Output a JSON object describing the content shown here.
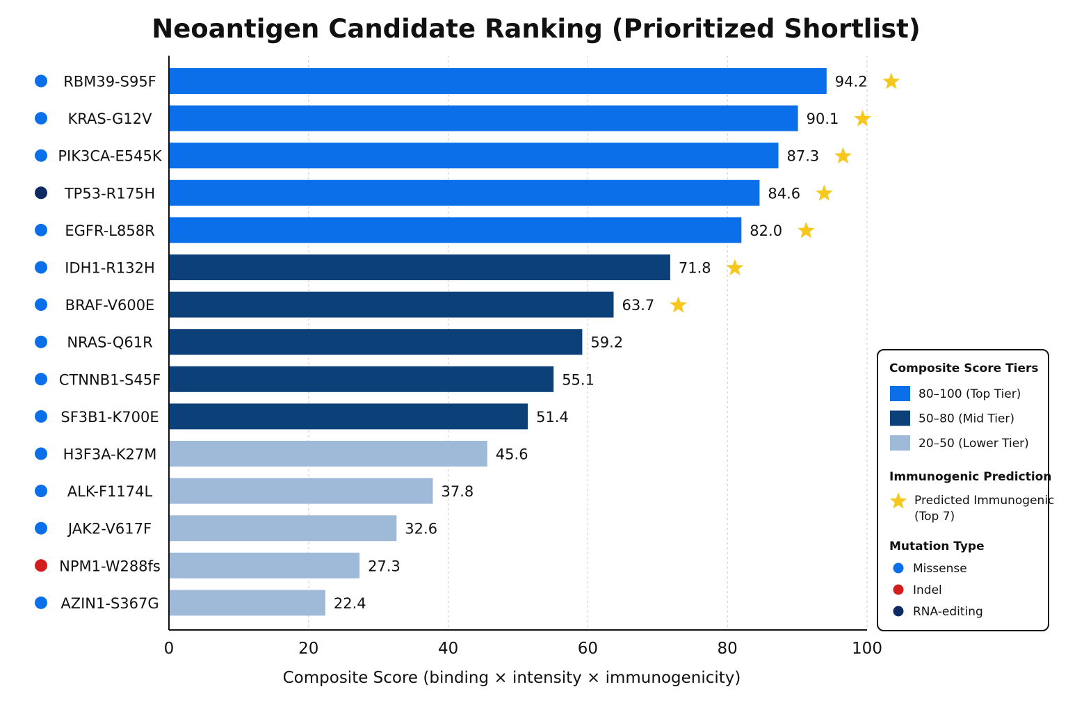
{
  "colors": {
    "top_tier": "#0a6fe8",
    "mid_tier": "#0b4079",
    "lower_tier": "#9fbad8",
    "star": "#f6c81e",
    "missense": "#0a6fe8",
    "indel": "#d21d1d",
    "rna_editing": "#0d2a63",
    "grid": "#c8c8c8",
    "axis": "#111111"
  },
  "chart_data": {
    "type": "bar",
    "orientation": "horizontal",
    "title": "Neoantigen Candidate Ranking (Prioritized Shortlist)",
    "xlabel": "Composite Score (binding × intensity × immunogenicity)",
    "ylabel": "",
    "xlim": [
      0,
      100
    ],
    "xticks": [
      "0",
      "20",
      "40",
      "60",
      "80",
      "100"
    ],
    "grid": "vertical dashed",
    "legend_position": "right",
    "categories": [
      "RBM39-S95F",
      "KRAS-G12V",
      "PIK3CA-E545K",
      "TP53-R175H",
      "EGFR-L858R",
      "IDH1-R132H",
      "BRAF-V600E",
      "NRAS-Q61R",
      "CTNNB1-S45F",
      "SF3B1-K700E",
      "H3F3A-K27M",
      "ALK-F1174L",
      "JAK2-V617F",
      "NPM1-W288fs",
      "AZIN1-S367G"
    ],
    "values": [
      94.2,
      90.1,
      87.3,
      84.6,
      82.0,
      71.8,
      63.7,
      59.2,
      55.1,
      51.4,
      45.6,
      37.8,
      32.6,
      27.3,
      22.4
    ],
    "value_labels": [
      "94.2",
      "90.1",
      "87.3",
      "84.6",
      "82.0",
      "71.8",
      "63.7",
      "59.2",
      "55.1",
      "51.4",
      "45.6",
      "37.8",
      "32.6",
      "27.3",
      "22.4"
    ],
    "tiers": [
      "top",
      "top",
      "top",
      "top",
      "top",
      "mid",
      "mid",
      "mid",
      "mid",
      "mid",
      "lower",
      "lower",
      "lower",
      "lower",
      "lower"
    ],
    "mutation_types": [
      "missense",
      "missense",
      "missense",
      "rna_editing",
      "missense",
      "missense",
      "missense",
      "missense",
      "missense",
      "missense",
      "missense",
      "missense",
      "missense",
      "indel",
      "missense"
    ],
    "predicted_immunogenic": [
      true,
      true,
      true,
      true,
      true,
      true,
      true,
      false,
      false,
      false,
      false,
      false,
      false,
      false,
      false
    ]
  },
  "legend": {
    "tiers_heading": "Composite Score Tiers",
    "tiers": [
      {
        "key": "top",
        "label": "80–100 (Top Tier)"
      },
      {
        "key": "mid",
        "label": "50–80 (Mid Tier)"
      },
      {
        "key": "lower",
        "label": "20–50 (Lower Tier)"
      }
    ],
    "immuno_heading": "Immunogenic Prediction",
    "immuno_lines": [
      "Predicted Immunogenic",
      "(Top 7)"
    ],
    "mutation_heading": "Mutation Type",
    "mutation_types": [
      {
        "key": "missense",
        "label": "Missense"
      },
      {
        "key": "indel",
        "label": "Indel"
      },
      {
        "key": "rna_editing",
        "label": "RNA-editing"
      }
    ]
  }
}
